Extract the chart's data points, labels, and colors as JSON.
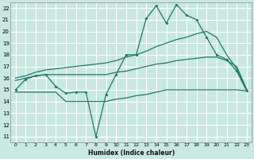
{
  "xlabel": "Humidex (Indice chaleur)",
  "x_ticks": [
    0,
    1,
    2,
    3,
    4,
    5,
    6,
    7,
    8,
    9,
    10,
    11,
    12,
    13,
    14,
    15,
    16,
    17,
    18,
    19,
    20,
    21,
    22,
    23
  ],
  "y_ticks": [
    11,
    12,
    13,
    14,
    15,
    16,
    17,
    18,
    19,
    20,
    21,
    22
  ],
  "ylim": [
    10.5,
    22.5
  ],
  "xlim": [
    -0.5,
    23.5
  ],
  "bg_color": "#c8e8e0",
  "line_color": "#1a7a6a",
  "grid_color": "#ffffff",
  "line_jagged_x": [
    0,
    1,
    2,
    3,
    4,
    5,
    6,
    7,
    8,
    9,
    10,
    11,
    12,
    13,
    14,
    15,
    16,
    17,
    18,
    19,
    20,
    21,
    22,
    23
  ],
  "line_jagged_y": [
    15.0,
    15.9,
    16.2,
    16.3,
    15.3,
    14.7,
    14.8,
    14.8,
    11.0,
    14.6,
    16.3,
    18.0,
    18.0,
    21.1,
    22.2,
    20.7,
    22.3,
    21.4,
    21.0,
    19.5,
    18.0,
    17.6,
    16.6,
    14.9
  ],
  "line_upper_x": [
    0,
    1,
    2,
    3,
    4,
    5,
    6,
    7,
    8,
    9,
    10,
    11,
    12,
    13,
    14,
    15,
    16,
    17,
    18,
    19,
    20,
    21,
    22,
    23
  ],
  "line_upper_y": [
    16.0,
    16.2,
    16.5,
    16.7,
    16.8,
    16.9,
    17.0,
    17.1,
    17.2,
    17.3,
    17.5,
    17.8,
    18.0,
    18.3,
    18.7,
    19.0,
    19.3,
    19.5,
    19.8,
    20.0,
    19.5,
    18.0,
    16.8,
    15.0
  ],
  "line_mid_x": [
    0,
    1,
    2,
    3,
    4,
    5,
    6,
    7,
    8,
    9,
    10,
    11,
    12,
    13,
    14,
    15,
    16,
    17,
    18,
    19,
    20,
    21,
    22,
    23
  ],
  "line_mid_y": [
    15.8,
    16.0,
    16.2,
    16.3,
    16.3,
    16.3,
    16.3,
    16.3,
    16.3,
    16.3,
    16.5,
    16.6,
    16.8,
    17.0,
    17.2,
    17.3,
    17.5,
    17.6,
    17.7,
    17.8,
    17.8,
    17.5,
    17.0,
    15.0
  ],
  "line_lower_x": [
    0,
    1,
    2,
    3,
    4,
    5,
    6,
    7,
    8,
    9,
    10,
    11,
    12,
    13,
    14,
    15,
    16,
    17,
    18,
    19,
    20,
    21,
    22,
    23
  ],
  "line_lower_y": [
    14.8,
    14.8,
    14.8,
    14.8,
    14.8,
    14.0,
    14.0,
    14.0,
    14.0,
    14.0,
    14.2,
    14.3,
    14.5,
    14.6,
    14.8,
    15.0,
    15.0,
    15.0,
    15.0,
    15.0,
    15.0,
    15.0,
    15.0,
    14.9
  ]
}
